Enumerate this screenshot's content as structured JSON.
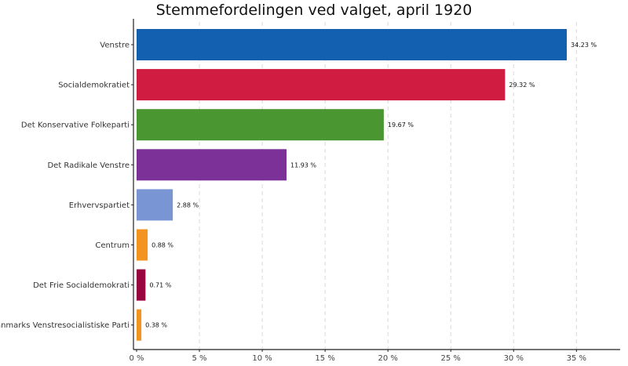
{
  "chart_data": {
    "type": "bar",
    "orientation": "horizontal",
    "title": "Stemmefordelingen ved valget, april 1920",
    "xlabel": "",
    "ylabel": "",
    "xlim": [
      0,
      38.5
    ],
    "x_ticks": [
      0,
      5,
      10,
      15,
      20,
      25,
      30,
      35
    ],
    "x_tick_labels": [
      "0 %",
      "5 %",
      "10 %",
      "15 %",
      "20 %",
      "25 %",
      "30 %",
      "35 %"
    ],
    "grid": "vertical dashed",
    "categories": [
      "Venstre",
      "Socialdemokratiet",
      "Det Konservative Folkeparti",
      "Det Radikale Venstre",
      "Erhvervspartiet",
      "Centrum",
      "Det Frie Socialdemokrati",
      "Danmarks Venstresocialistiske Parti"
    ],
    "values": [
      34.23,
      29.32,
      19.67,
      11.93,
      2.88,
      0.88,
      0.71,
      0.38
    ],
    "value_labels": [
      "34.23 %",
      "29.32 %",
      "19.67 %",
      "11.93 %",
      "2.88 %",
      "0.88 %",
      "0.71 %",
      "0.38 %"
    ],
    "colors": [
      "#1460b0",
      "#d01c40",
      "#4a9630",
      "#7b3198",
      "#7995d4",
      "#f39320",
      "#98063f",
      "#f39320"
    ]
  }
}
